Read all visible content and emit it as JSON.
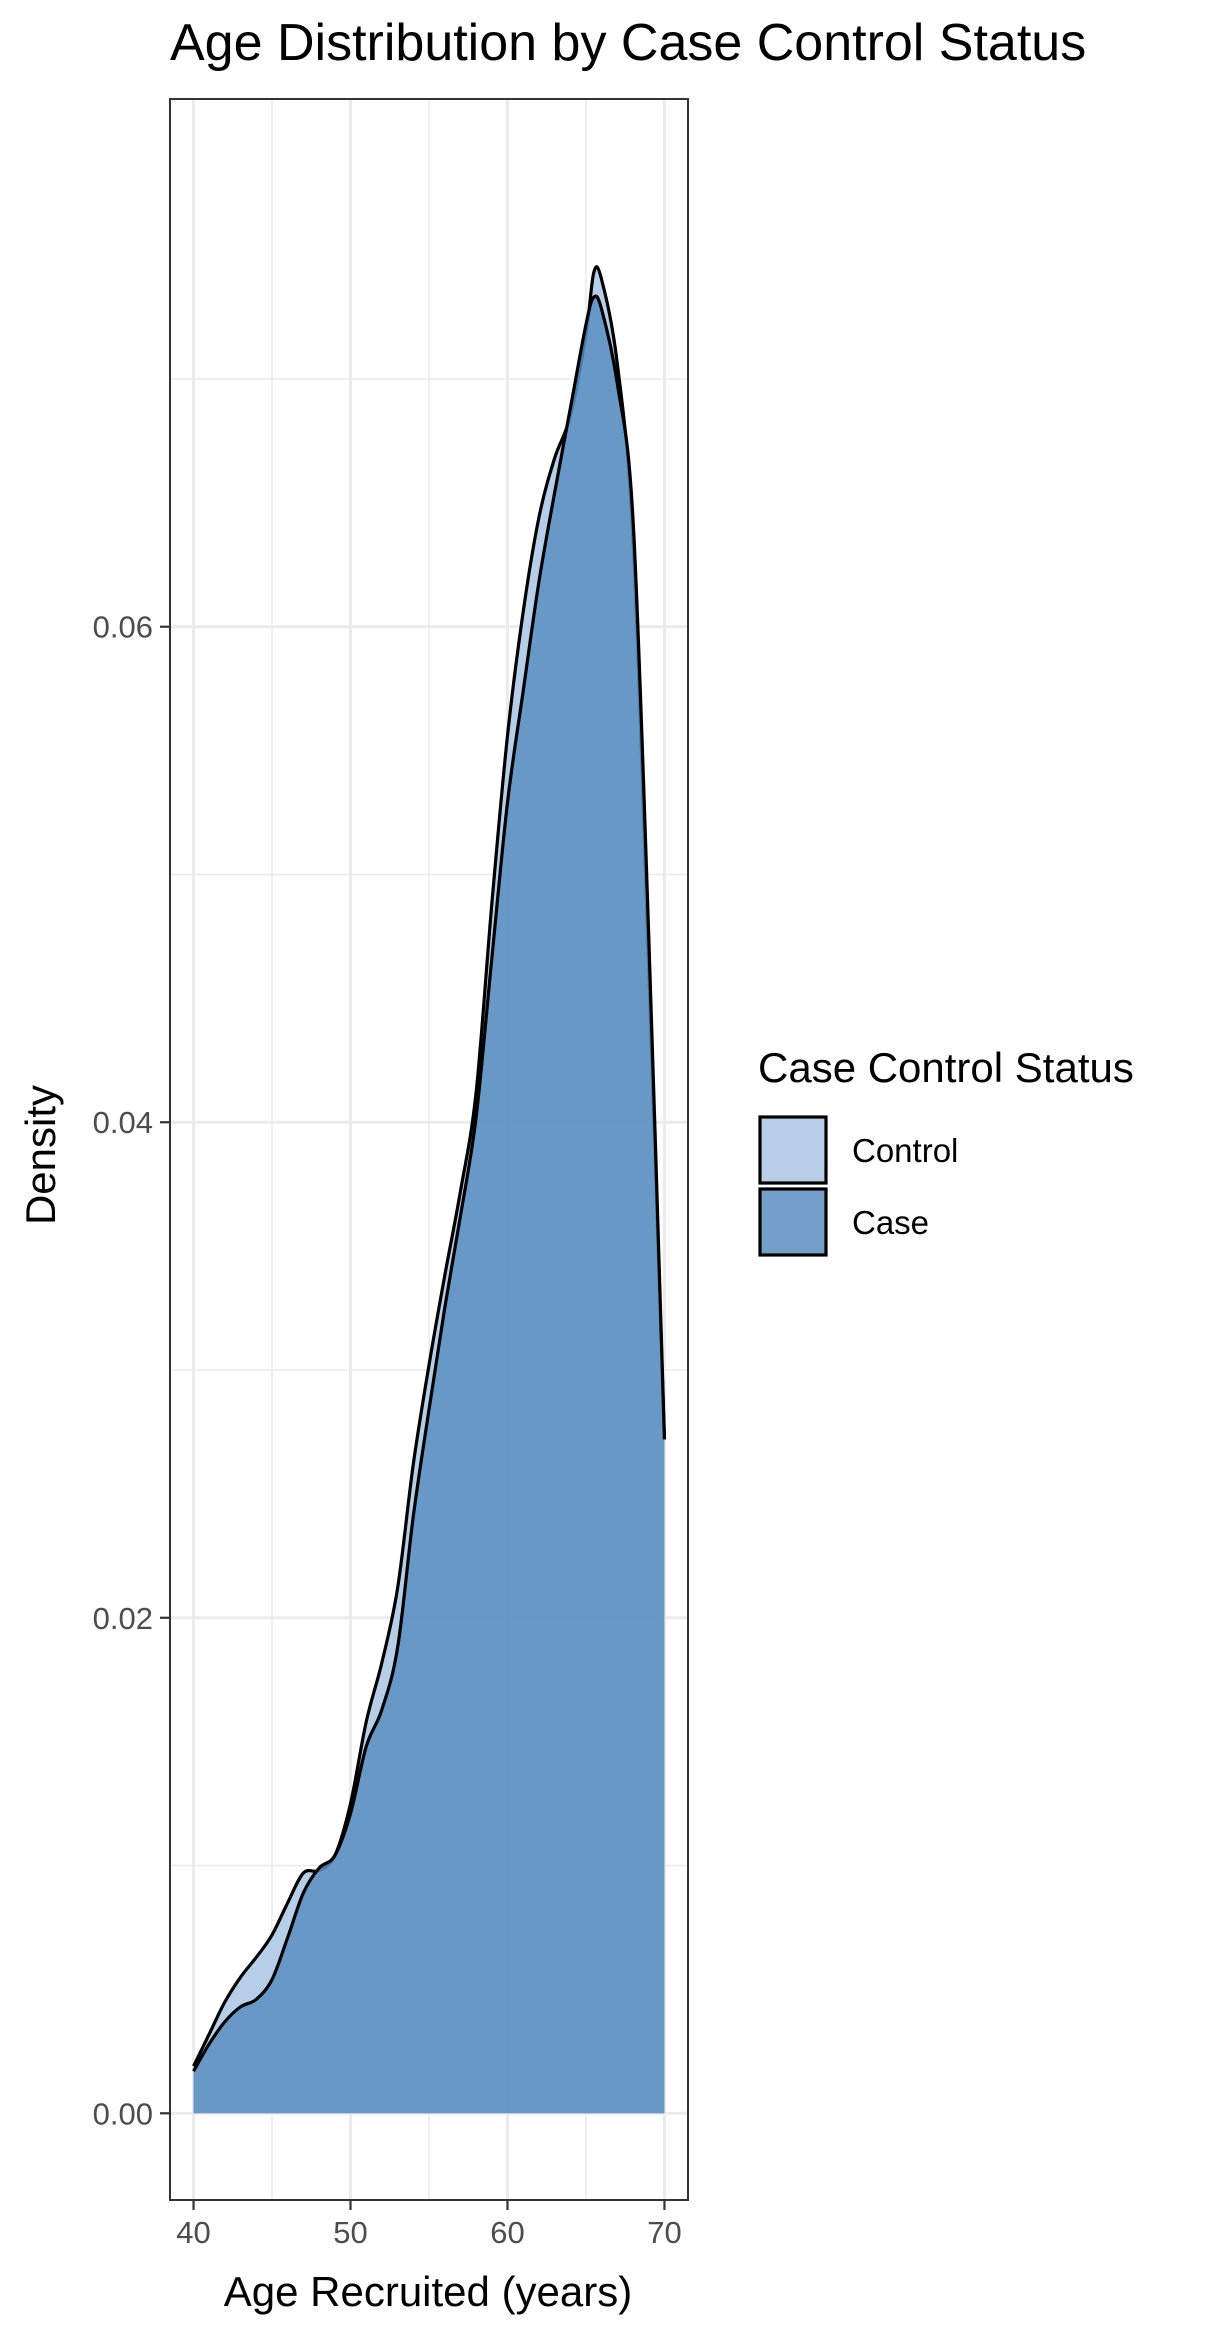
{
  "chart_data": {
    "type": "area",
    "title": "Age Distribution by Case Control Status",
    "xlabel": "Age Recruited (years)",
    "ylabel": "Density",
    "xlim": [
      38.5,
      71.5
    ],
    "ylim": [
      -0.0035,
      0.0813
    ],
    "x_ticks": [
      40,
      50,
      60,
      70
    ],
    "x_tick_labels": [
      "40",
      "50",
      "60",
      "70"
    ],
    "y_ticks": [
      0.0,
      0.02,
      0.04,
      0.06
    ],
    "y_tick_labels": [
      "0.00",
      "0.02",
      "0.04",
      "0.06"
    ],
    "grid": true,
    "legend": {
      "title": "Case Control Status",
      "position": "right"
    },
    "colors": {
      "Control": "#a9c6e3",
      "Case": "#5b8ec0",
      "outline": "#000000",
      "grid": "#ebebeb",
      "panel_border": "#333333"
    },
    "series": [
      {
        "name": "Control",
        "x": [
          40,
          41,
          42,
          43,
          44,
          45,
          46,
          47,
          48,
          49,
          50,
          51,
          52,
          53,
          54,
          55,
          56,
          57,
          58,
          59,
          60,
          61,
          62,
          63,
          64,
          65,
          65.5,
          66,
          67,
          68,
          69,
          70
        ],
        "values": [
          0.0019,
          0.0032,
          0.0045,
          0.0055,
          0.0063,
          0.0072,
          0.0085,
          0.0097,
          0.0098,
          0.0104,
          0.0125,
          0.0158,
          0.0182,
          0.0212,
          0.0262,
          0.0302,
          0.0338,
          0.0372,
          0.0412,
          0.0488,
          0.0556,
          0.0606,
          0.0644,
          0.0668,
          0.0685,
          0.0718,
          0.0743,
          0.074,
          0.0706,
          0.0635,
          0.0462,
          0.0272
        ]
      },
      {
        "name": "Case",
        "x": [
          40,
          41,
          42,
          43,
          44,
          45,
          46,
          47,
          48,
          49,
          50,
          51,
          52,
          53,
          54,
          55,
          56,
          57,
          58,
          59,
          60,
          61,
          62,
          63,
          64,
          65,
          65.5,
          66,
          67,
          68,
          69,
          70
        ],
        "values": [
          0.0017,
          0.0028,
          0.0037,
          0.0043,
          0.0046,
          0.0054,
          0.0071,
          0.0089,
          0.0099,
          0.0104,
          0.0121,
          0.0148,
          0.0163,
          0.0188,
          0.0241,
          0.0284,
          0.0325,
          0.0362,
          0.0402,
          0.0466,
          0.0529,
          0.0574,
          0.0618,
          0.0654,
          0.0688,
          0.0722,
          0.0733,
          0.0728,
          0.0698,
          0.0643,
          0.0475,
          0.0272
        ]
      }
    ]
  }
}
